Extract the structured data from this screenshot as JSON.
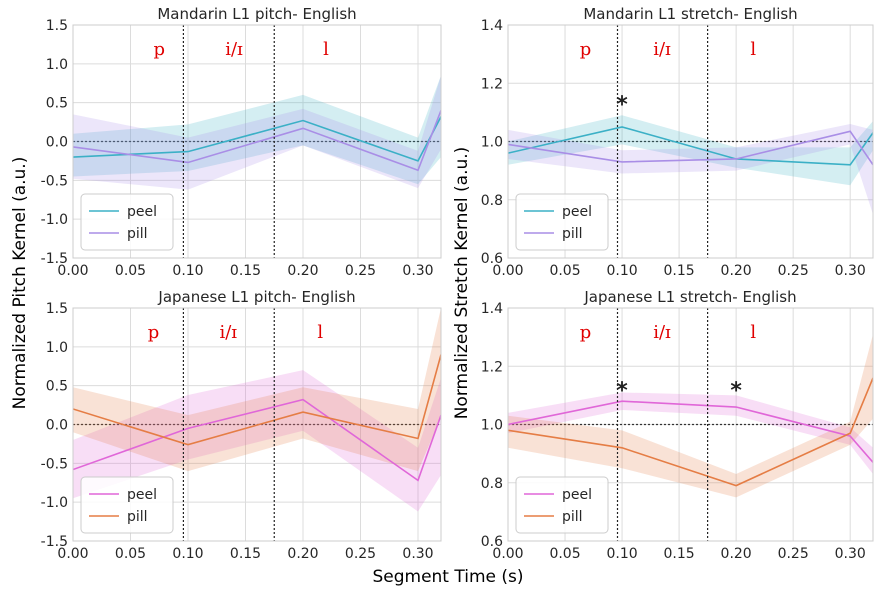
{
  "figure": {
    "ylabel_left": "Normalized Pitch Kernel (a.u.)",
    "ylabel_right": "Normalized Stretch Kernel (a.u.)",
    "xlabel": "Segment Time (s)"
  },
  "chart_data": [
    {
      "type": "line",
      "title": "Mandarin L1 pitch- English",
      "ylim": [
        -1.5,
        1.5
      ],
      "yticks": [
        -1.5,
        -1.0,
        -0.5,
        0.0,
        0.5,
        1.0,
        1.5
      ],
      "xlim": [
        0.0,
        0.32
      ],
      "xticks": [
        0.0,
        0.05,
        0.1,
        0.15,
        0.2,
        0.25,
        0.3
      ],
      "boundaries": [
        0.096,
        0.175
      ],
      "reference_line": 0.0,
      "segments": [
        {
          "label": "p",
          "x": 0.075
        },
        {
          "label": "i/ɪ",
          "x": 0.14
        },
        {
          "label": "l",
          "x": 0.22
        }
      ],
      "significance": [],
      "series": [
        {
          "name": "peel",
          "color": "#3bb0c6",
          "x": [
            0,
            0.1,
            0.2,
            0.3,
            0.32
          ],
          "values": [
            -0.2,
            -0.13,
            0.27,
            -0.25,
            0.32
          ],
          "lower": [
            -0.45,
            -0.38,
            -0.05,
            -0.55,
            -0.2
          ],
          "upper": [
            0.1,
            0.22,
            0.6,
            0.05,
            0.85
          ]
        },
        {
          "name": "pill",
          "color": "#a98ee6",
          "x": [
            0,
            0.1,
            0.2,
            0.3,
            0.32
          ],
          "values": [
            -0.07,
            -0.27,
            0.17,
            -0.37,
            0.4
          ],
          "lower": [
            -0.48,
            -0.62,
            -0.05,
            -0.6,
            -0.1
          ],
          "upper": [
            0.35,
            0.05,
            0.42,
            -0.12,
            0.85
          ]
        }
      ]
    },
    {
      "type": "line",
      "title": "Mandarin L1 stretch- English",
      "ylim": [
        0.6,
        1.4
      ],
      "yticks": [
        0.6,
        0.8,
        1.0,
        1.2,
        1.4
      ],
      "xlim": [
        0.0,
        0.32
      ],
      "xticks": [
        0.0,
        0.05,
        0.1,
        0.15,
        0.2,
        0.25,
        0.3
      ],
      "boundaries": [
        0.096,
        0.175
      ],
      "reference_line": 1.0,
      "segments": [
        {
          "label": "p",
          "x": 0.068
        },
        {
          "label": "i/ɪ",
          "x": 0.135
        },
        {
          "label": "l",
          "x": 0.215
        }
      ],
      "significance": [
        {
          "label": "*",
          "x": 0.1,
          "y": 1.13
        }
      ],
      "series": [
        {
          "name": "peel",
          "color": "#3bb0c6",
          "x": [
            0,
            0.1,
            0.2,
            0.3,
            0.32
          ],
          "values": [
            0.96,
            1.05,
            0.94,
            0.92,
            1.03
          ],
          "lower": [
            0.92,
            0.99,
            0.91,
            0.85,
            0.97
          ],
          "upper": [
            1.0,
            1.09,
            0.98,
            0.98,
            1.07
          ]
        },
        {
          "name": "pill",
          "color": "#a98ee6",
          "x": [
            0,
            0.1,
            0.2,
            0.3,
            0.32
          ],
          "values": [
            0.99,
            0.93,
            0.94,
            1.035,
            0.92
          ],
          "lower": [
            0.94,
            0.89,
            0.9,
            0.99,
            0.75
          ],
          "upper": [
            1.04,
            0.97,
            0.98,
            1.06,
            1.04
          ]
        }
      ]
    },
    {
      "type": "line",
      "title": "Japanese L1 pitch- English",
      "ylim": [
        -1.5,
        1.5
      ],
      "yticks": [
        -1.5,
        -1.0,
        -0.5,
        0.0,
        0.5,
        1.0,
        1.5
      ],
      "xlim": [
        0.0,
        0.32
      ],
      "xticks": [
        0.0,
        0.05,
        0.1,
        0.15,
        0.2,
        0.25,
        0.3
      ],
      "boundaries": [
        0.096,
        0.175
      ],
      "reference_line": 0.0,
      "segments": [
        {
          "label": "p",
          "x": 0.07
        },
        {
          "label": "i/ɪ",
          "x": 0.135
        },
        {
          "label": "l",
          "x": 0.215
        }
      ],
      "significance": [],
      "series": [
        {
          "name": "peel",
          "color": "#e067d8",
          "x": [
            0,
            0.1,
            0.2,
            0.3,
            0.32
          ],
          "values": [
            -0.58,
            -0.05,
            0.32,
            -0.72,
            0.12
          ],
          "lower": [
            -0.95,
            -0.45,
            -0.08,
            -1.12,
            -0.65
          ],
          "upper": [
            -0.2,
            0.38,
            0.7,
            -0.3,
            0.6
          ]
        },
        {
          "name": "pill",
          "color": "#e57d45",
          "x": [
            0,
            0.1,
            0.2,
            0.3,
            0.32
          ],
          "values": [
            0.2,
            -0.26,
            0.16,
            -0.18,
            0.9
          ],
          "lower": [
            -0.1,
            -0.6,
            -0.18,
            -0.6,
            0.1
          ],
          "upper": [
            0.48,
            0.12,
            0.48,
            0.2,
            1.5
          ]
        }
      ]
    },
    {
      "type": "line",
      "title": "Japanese L1 stretch- English",
      "ylim": [
        0.6,
        1.4
      ],
      "yticks": [
        0.6,
        0.8,
        1.0,
        1.2,
        1.4
      ],
      "xlim": [
        0.0,
        0.32
      ],
      "xticks": [
        0.0,
        0.05,
        0.1,
        0.15,
        0.2,
        0.25,
        0.3
      ],
      "boundaries": [
        0.096,
        0.175
      ],
      "reference_line": 1.0,
      "segments": [
        {
          "label": "p",
          "x": 0.068
        },
        {
          "label": "i/ɪ",
          "x": 0.135
        },
        {
          "label": "l",
          "x": 0.215
        }
      ],
      "significance": [
        {
          "label": "*",
          "x": 0.1,
          "y": 1.12
        },
        {
          "label": "*",
          "x": 0.2,
          "y": 1.12
        }
      ],
      "series": [
        {
          "name": "peel",
          "color": "#e067d8",
          "x": [
            0,
            0.1,
            0.2,
            0.3,
            0.32
          ],
          "values": [
            1.0,
            1.08,
            1.06,
            0.96,
            0.87
          ],
          "lower": [
            0.97,
            1.05,
            1.03,
            0.93,
            0.83
          ],
          "upper": [
            1.04,
            1.11,
            1.1,
            0.99,
            0.92
          ]
        },
        {
          "name": "pill",
          "color": "#e57d45",
          "x": [
            0,
            0.1,
            0.2,
            0.3,
            0.32
          ],
          "values": [
            0.98,
            0.92,
            0.79,
            0.97,
            1.16
          ],
          "lower": [
            0.92,
            0.85,
            0.75,
            0.93,
            1.02
          ],
          "upper": [
            1.03,
            0.98,
            0.83,
            1.01,
            1.31
          ]
        }
      ]
    }
  ]
}
